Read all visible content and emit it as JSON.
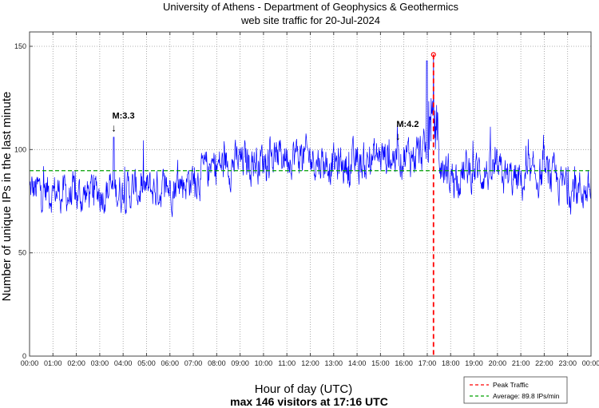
{
  "chart_data": {
    "type": "line",
    "title": "University of Athens - Department of Geophysics & Geothermics",
    "subtitle": "web site traffic for 20-Jul-2024",
    "xlabel": "Hour of day (UTC)",
    "xlabel2": "max 146 visitors at 17:16 UTC",
    "ylabel": "Number of unique IPs in the last minute",
    "ylim": [
      0,
      150
    ],
    "xlim_hours": [
      0,
      24
    ],
    "yticks": [
      "0",
      "50",
      "100",
      "150"
    ],
    "ytick_values": [
      0,
      50,
      100,
      150
    ],
    "xticks": [
      "00:00",
      "01:00",
      "02:00",
      "03:00",
      "04:00",
      "05:00",
      "06:00",
      "07:00",
      "08:00",
      "09:00",
      "10:00",
      "11:00",
      "12:00",
      "13:00",
      "14:00",
      "15:00",
      "16:00",
      "17:00",
      "18:00",
      "19:00",
      "20:00",
      "21:00",
      "22:00",
      "23:00",
      "00:00"
    ],
    "grid": true,
    "series": [
      {
        "name": "traffic",
        "color": "#0000ff",
        "hourly_mean": [
          80,
          80,
          77,
          80,
          80,
          80,
          82,
          86,
          92,
          94,
          95,
          98,
          96,
          93,
          92,
          97,
          97,
          98,
          87,
          90,
          88,
          84,
          88,
          81,
          80
        ],
        "noise_amplitude": 9
      }
    ],
    "peak": {
      "hour": 17.267,
      "value": 146,
      "color": "#ff0000"
    },
    "secondary_spike": {
      "hour": 16.98,
      "value": 143
    },
    "average": {
      "value": 89.8,
      "color": "#00a000"
    },
    "annotations": [
      {
        "label": "M:3.3",
        "hour": 3.6,
        "value": 108
      },
      {
        "label": "M:4.2",
        "hour": 15.75,
        "value": 104
      }
    ],
    "legend": {
      "position": "bottom-right",
      "entries": [
        "Peak Traffic",
        "Average: 89.8 IPs/min"
      ]
    }
  }
}
